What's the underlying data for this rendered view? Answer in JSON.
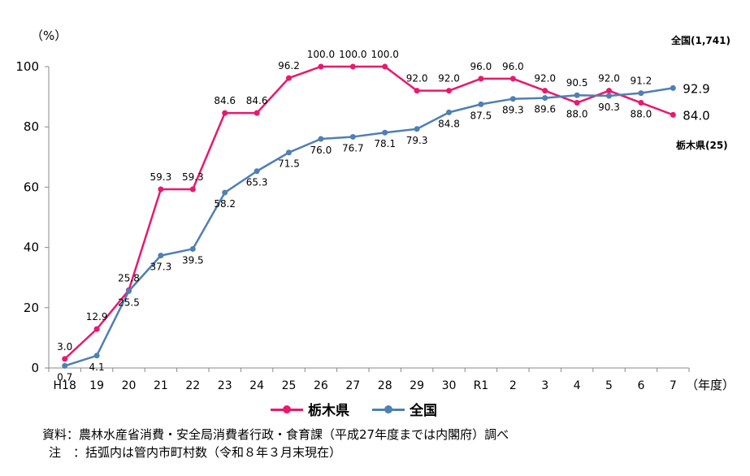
{
  "chart_data": {
    "type": "line",
    "categories": [
      "H18",
      "19",
      "20",
      "21",
      "22",
      "23",
      "24",
      "25",
      "26",
      "27",
      "28",
      "29",
      "30",
      "R1",
      "2",
      "3",
      "4",
      "5",
      "6",
      "7"
    ],
    "x_unit_label": "（年度）",
    "y_unit_label": "（%）",
    "ylim": [
      0,
      100
    ],
    "yticks": [
      0,
      20,
      40,
      60,
      80,
      100
    ],
    "series": [
      {
        "name": "栃木県",
        "color": "#e8196e",
        "values": [
          3.0,
          12.9,
          25.8,
          59.3,
          59.3,
          84.6,
          84.6,
          96.2,
          100.0,
          100.0,
          100.0,
          92.0,
          92.0,
          96.0,
          96.0,
          92.0,
          88.0,
          92.0,
          88.0,
          84.0
        ],
        "end_note": "栃木県(25)"
      },
      {
        "name": "全国",
        "color": "#4f7fb5",
        "values": [
          0.7,
          4.1,
          25.5,
          37.3,
          39.5,
          58.2,
          65.3,
          71.5,
          76.0,
          76.7,
          78.1,
          79.3,
          84.8,
          87.5,
          89.3,
          89.6,
          90.5,
          90.3,
          91.2,
          92.9
        ],
        "end_note": "全国(1,741)"
      }
    ],
    "legend_position": "bottom"
  },
  "notes": {
    "source": "資料：農林水産省消費・安全局消費者行政・食育課（平成27年度までは内閣府）調べ",
    "note": "注　：括弧内は管内市町村数（令和８年３月末現在）"
  }
}
